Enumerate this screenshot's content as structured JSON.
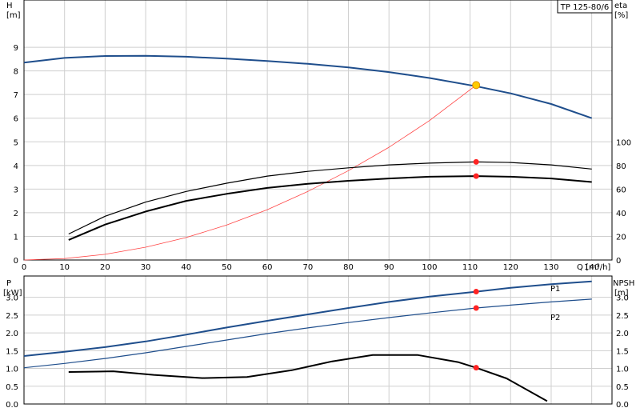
{
  "model_label": "TP 125-80/6",
  "colors": {
    "pump_curve": "#1f4e8c",
    "system_curve": "#ff4444",
    "efficiency": "#000000",
    "marker": "#ff2222",
    "duty_point": "#ffcc00",
    "grid": "#cfcfcf"
  },
  "chart_data": [
    {
      "id": "head",
      "type": "line",
      "axes": {
        "x_label": "Q [m³/h]",
        "x_ticks": [
          0,
          10,
          20,
          30,
          40,
          50,
          60,
          70,
          80,
          90,
          100,
          110,
          120,
          130,
          140
        ],
        "y_left_label_top": "H",
        "y_left_label_bottom": "[m]",
        "y_left_ticks": [
          0,
          1,
          2,
          3,
          4,
          5,
          6,
          7,
          8,
          9
        ],
        "y_left_range": [
          0,
          11
        ],
        "y_right_label_top": "eta",
        "y_right_label_bottom": "[%]",
        "y_right_ticks": [
          0,
          20,
          40,
          60,
          80,
          100
        ],
        "y_right_range": [
          0,
          220
        ],
        "x_range": [
          0,
          145
        ],
        "grid": true
      },
      "series": [
        {
          "key": "head",
          "axis": "left",
          "x": [
            0,
            10,
            20,
            30,
            40,
            50,
            60,
            70,
            80,
            90,
            100,
            111.5,
            120,
            130,
            140
          ],
          "y": [
            8.35,
            8.55,
            8.63,
            8.64,
            8.6,
            8.52,
            8.42,
            8.3,
            8.15,
            7.95,
            7.7,
            7.35,
            7.05,
            6.6,
            6.0
          ]
        },
        {
          "key": "system",
          "axis": "left",
          "x": [
            0,
            10,
            20,
            30,
            40,
            50,
            60,
            70,
            80,
            90,
            100,
            111.5
          ],
          "y": [
            0,
            0.06,
            0.24,
            0.54,
            0.95,
            1.48,
            2.13,
            2.9,
            3.78,
            4.77,
            5.9,
            7.4
          ]
        },
        {
          "key": "eta1",
          "axis": "right",
          "x": [
            11,
            20,
            30,
            40,
            50,
            60,
            70,
            80,
            90,
            100,
            111.5,
            120,
            130,
            140
          ],
          "y": [
            22,
            37,
            49,
            58,
            65,
            71,
            75,
            78,
            80.5,
            82,
            83,
            82.5,
            80.5,
            77
          ]
        },
        {
          "key": "eta2",
          "axis": "right",
          "x": [
            11,
            20,
            30,
            40,
            50,
            60,
            70,
            80,
            90,
            100,
            111.5,
            120,
            130,
            140
          ],
          "y": [
            17,
            30,
            41,
            50,
            56,
            61,
            64.5,
            67,
            69,
            70.5,
            71,
            70.5,
            69,
            66
          ]
        }
      ],
      "markers": [
        {
          "series": "head",
          "x": 111.5,
          "y": 7.4,
          "kind": "duty"
        },
        {
          "series": "eta1",
          "x": 111.5,
          "y": 83,
          "kind": "point"
        },
        {
          "series": "eta2",
          "x": 111.5,
          "y": 71,
          "kind": "point"
        }
      ]
    },
    {
      "id": "power",
      "type": "line",
      "axes": {
        "x_range": [
          0,
          145
        ],
        "x_ticks": [
          0,
          10,
          20,
          30,
          40,
          50,
          60,
          70,
          80,
          90,
          100,
          110,
          120,
          130,
          140
        ],
        "y_left_label_top": "P",
        "y_left_label_bottom": "[kW]",
        "y_left_ticks": [
          0.0,
          0.5,
          1.0,
          1.5,
          2.0,
          2.5,
          3.0
        ],
        "y_left_tick_labels": [
          "0.0",
          "0.5",
          "1.0",
          "1.5",
          "2.0",
          "2.5",
          "3.0"
        ],
        "y_left_range": [
          0,
          3.6
        ],
        "y_right_label_top": "NPSH",
        "y_right_label_bottom": "[m]",
        "y_right_ticks": [
          0.0,
          0.5,
          1.0,
          1.5,
          2.0,
          2.5,
          3.0
        ],
        "y_right_tick_labels": [
          "0.0",
          "0.5",
          "1.0",
          "1.5",
          "2.0",
          "2.5",
          "3.0"
        ],
        "y_right_range": [
          0,
          3.6
        ],
        "grid": true
      },
      "series": [
        {
          "key": "P1",
          "name": "P1",
          "axis": "left",
          "x": [
            0,
            10,
            20,
            30,
            40,
            50,
            60,
            70,
            80,
            90,
            100,
            111.5,
            120,
            130,
            140
          ],
          "y": [
            1.35,
            1.47,
            1.6,
            1.76,
            1.95,
            2.15,
            2.34,
            2.52,
            2.7,
            2.87,
            3.02,
            3.16,
            3.27,
            3.37,
            3.45
          ]
        },
        {
          "key": "P2",
          "name": "P2",
          "axis": "left",
          "x": [
            0,
            10,
            20,
            30,
            40,
            50,
            60,
            70,
            80,
            90,
            100,
            111.5,
            120,
            130,
            140
          ],
          "y": [
            1.02,
            1.14,
            1.28,
            1.44,
            1.62,
            1.8,
            1.98,
            2.14,
            2.29,
            2.43,
            2.56,
            2.7,
            2.78,
            2.87,
            2.95
          ]
        },
        {
          "key": "NPSH",
          "axis": "right",
          "x": [
            11,
            22,
            32,
            44,
            55,
            66,
            76,
            86,
            97,
            107,
            111.5,
            119,
            129
          ],
          "y": [
            0.9,
            0.92,
            0.82,
            0.73,
            0.76,
            0.95,
            1.2,
            1.38,
            1.38,
            1.18,
            1.02,
            0.72,
            0.08
          ]
        }
      ],
      "markers": [
        {
          "series": "P1",
          "x": 111.5,
          "y": 3.16,
          "kind": "point"
        },
        {
          "series": "P2",
          "x": 111.5,
          "y": 2.7,
          "kind": "point"
        },
        {
          "series": "NPSH",
          "x": 111.5,
          "y": 1.02,
          "kind": "point"
        }
      ]
    }
  ]
}
